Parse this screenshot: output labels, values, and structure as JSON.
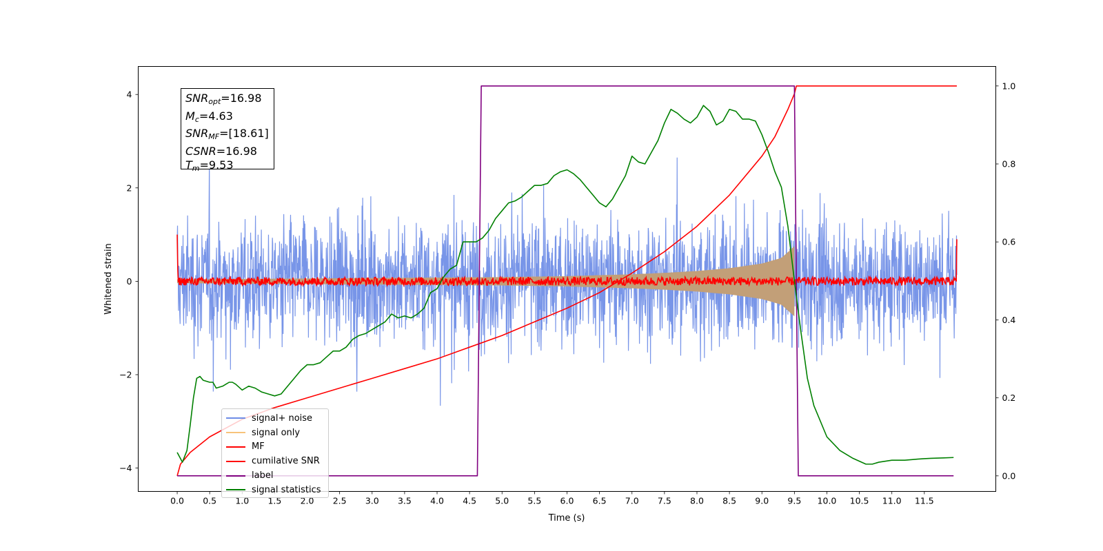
{
  "chart_data": {
    "type": "line",
    "xlabel": "Time (s)",
    "ylabel": "Whitened strain",
    "x_ticks": [
      "0.0",
      "0.5",
      "1.0",
      "1.5",
      "2.0",
      "2.5",
      "3.0",
      "3.5",
      "4.0",
      "4.5",
      "5.0",
      "5.5",
      "6.0",
      "6.5",
      "7.0",
      "7.5",
      "8.0",
      "8.5",
      "9.0",
      "9.5",
      "10.0",
      "10.5",
      "11.0",
      "11.5"
    ],
    "y_left_ticks": [
      "-4",
      "-2",
      "0",
      "2",
      "4"
    ],
    "y_right_ticks": [
      "0.0",
      "0.2",
      "0.4",
      "0.6",
      "0.8",
      "1.0"
    ],
    "xlim": [
      -0.6,
      12.6
    ],
    "ylim_left": [
      -4.5,
      4.6
    ],
    "ylim_right": [
      -0.04,
      1.05
    ],
    "annotation": {
      "snr_opt_label": "SNR",
      "snr_opt_sub": "opt",
      "snr_opt_value": "=16.98",
      "mc_label": "M",
      "mc_sub": "c",
      "mc_value": "=4.63",
      "snr_mf_label": "SNR",
      "snr_mf_sub": "MF",
      "snr_mf_value": "=[18.61]",
      "csnr_label": "CSNR",
      "csnr_value": "=16.98",
      "tm_label": "T",
      "tm_sub": "m",
      "tm_value": "=9.53"
    },
    "series": [
      {
        "name": "signal+ noise",
        "color": "#6d8ce6",
        "axis": "left",
        "kind": "noise",
        "amplitude": 2.2,
        "t_start": 0.0,
        "t_end": 12.0
      },
      {
        "name": "signal only",
        "color": "#f7c37a",
        "axis": "left",
        "kind": "chirp_envelope",
        "envelope_t": [
          0.0,
          1.0,
          2.0,
          3.0,
          4.0,
          5.0,
          6.0,
          7.0,
          7.5,
          8.0,
          8.5,
          9.0,
          9.3,
          9.5,
          9.53
        ],
        "envelope_amp": [
          0.04,
          0.05,
          0.06,
          0.07,
          0.08,
          0.09,
          0.11,
          0.15,
          0.18,
          0.22,
          0.28,
          0.38,
          0.5,
          0.75,
          0.05
        ]
      },
      {
        "name": "MF",
        "color": "#ff0000",
        "axis": "left",
        "kind": "mf_noise",
        "amplitude": 0.09,
        "t_start": 0.0,
        "t_end": 12.0,
        "start_value": 1.0,
        "end_value": 0.9
      },
      {
        "name": "cumilative SNR",
        "color": "#ff0000",
        "axis": "right",
        "x": [
          0.0,
          0.05,
          0.2,
          0.5,
          1.0,
          1.5,
          2.0,
          2.5,
          3.0,
          3.5,
          4.0,
          4.5,
          5.0,
          5.5,
          6.0,
          6.5,
          7.0,
          7.5,
          8.0,
          8.5,
          9.0,
          9.2,
          9.4,
          9.5,
          9.53,
          12.0
        ],
        "y": [
          0.0,
          0.03,
          0.06,
          0.1,
          0.145,
          0.175,
          0.2,
          0.225,
          0.25,
          0.275,
          0.3,
          0.33,
          0.36,
          0.395,
          0.43,
          0.47,
          0.52,
          0.575,
          0.64,
          0.72,
          0.82,
          0.87,
          0.94,
          0.98,
          1.0,
          1.0
        ]
      },
      {
        "name": "label",
        "color": "#800080",
        "axis": "right",
        "x": [
          0.0,
          4.62,
          4.68,
          9.5,
          9.56,
          11.95
        ],
        "y": [
          0.0,
          0.0,
          1.0,
          1.0,
          0.0,
          0.0
        ]
      },
      {
        "name": "signal statistics",
        "color": "#008000",
        "axis": "right",
        "x": [
          0.0,
          0.08,
          0.15,
          0.2,
          0.25,
          0.3,
          0.35,
          0.4,
          0.5,
          0.55,
          0.6,
          0.7,
          0.75,
          0.8,
          0.85,
          0.9,
          1.0,
          1.05,
          1.1,
          1.2,
          1.3,
          1.4,
          1.5,
          1.6,
          1.7,
          1.8,
          1.9,
          2.0,
          2.1,
          2.2,
          2.3,
          2.4,
          2.5,
          2.6,
          2.7,
          2.8,
          2.9,
          3.0,
          3.1,
          3.2,
          3.3,
          3.4,
          3.5,
          3.6,
          3.7,
          3.8,
          3.9,
          4.0,
          4.1,
          4.2,
          4.3,
          4.4,
          4.5,
          4.6,
          4.7,
          4.8,
          4.9,
          5.0,
          5.1,
          5.2,
          5.3,
          5.4,
          5.5,
          5.6,
          5.7,
          5.8,
          5.9,
          6.0,
          6.1,
          6.2,
          6.3,
          6.4,
          6.5,
          6.6,
          6.7,
          6.8,
          6.9,
          7.0,
          7.1,
          7.2,
          7.3,
          7.4,
          7.5,
          7.6,
          7.7,
          7.8,
          7.9,
          8.0,
          8.1,
          8.2,
          8.3,
          8.4,
          8.5,
          8.6,
          8.7,
          8.8,
          8.9,
          9.0,
          9.1,
          9.2,
          9.3,
          9.4,
          9.5,
          9.6,
          9.7,
          9.8,
          9.9,
          10.0,
          10.2,
          10.4,
          10.6,
          10.7,
          10.8,
          11.0,
          11.2,
          11.4,
          11.5,
          11.6,
          11.8,
          11.95
        ],
        "y": [
          0.06,
          0.035,
          0.065,
          0.13,
          0.2,
          0.25,
          0.255,
          0.245,
          0.24,
          0.24,
          0.225,
          0.23,
          0.235,
          0.24,
          0.24,
          0.235,
          0.22,
          0.225,
          0.23,
          0.225,
          0.215,
          0.21,
          0.205,
          0.21,
          0.23,
          0.25,
          0.27,
          0.285,
          0.285,
          0.29,
          0.305,
          0.32,
          0.32,
          0.33,
          0.35,
          0.36,
          0.365,
          0.375,
          0.385,
          0.395,
          0.415,
          0.405,
          0.41,
          0.405,
          0.415,
          0.43,
          0.47,
          0.48,
          0.51,
          0.53,
          0.54,
          0.6,
          0.6,
          0.6,
          0.61,
          0.63,
          0.66,
          0.68,
          0.7,
          0.705,
          0.715,
          0.73,
          0.745,
          0.745,
          0.75,
          0.77,
          0.78,
          0.785,
          0.775,
          0.76,
          0.74,
          0.72,
          0.7,
          0.69,
          0.71,
          0.74,
          0.77,
          0.82,
          0.805,
          0.8,
          0.83,
          0.86,
          0.905,
          0.94,
          0.93,
          0.915,
          0.905,
          0.92,
          0.95,
          0.935,
          0.9,
          0.91,
          0.94,
          0.935,
          0.915,
          0.915,
          0.91,
          0.875,
          0.83,
          0.78,
          0.74,
          0.64,
          0.5,
          0.37,
          0.25,
          0.18,
          0.14,
          0.1,
          0.065,
          0.045,
          0.03,
          0.03,
          0.035,
          0.04,
          0.04,
          0.043,
          0.044,
          0.045,
          0.046,
          0.047
        ]
      }
    ]
  }
}
